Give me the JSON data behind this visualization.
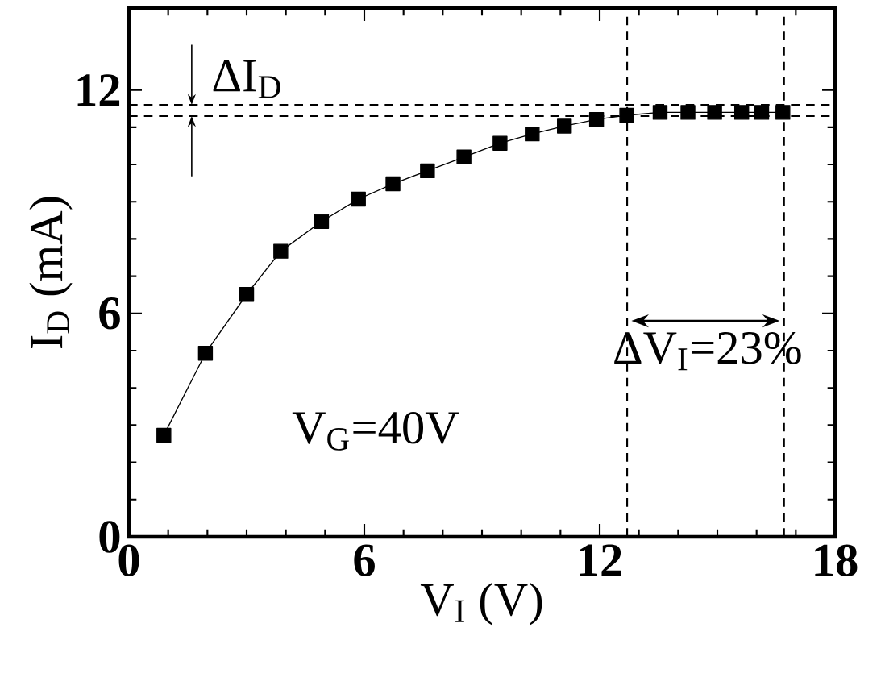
{
  "chart_data": {
    "type": "line",
    "xlabel": "V$_{I}$ (V)",
    "ylabel": "I$_{D}$ (mA)",
    "x": [
      0.89,
      1.95,
      3.0,
      3.87,
      4.91,
      5.85,
      6.73,
      7.61,
      8.54,
      9.46,
      10.28,
      11.1,
      11.92,
      12.69,
      13.54,
      14.25,
      14.93,
      15.62,
      16.13,
      16.67
    ],
    "values": [
      2.73,
      4.93,
      6.51,
      7.67,
      8.47,
      9.07,
      9.48,
      9.83,
      10.2,
      10.57,
      10.82,
      11.03,
      11.21,
      11.32,
      11.4,
      11.4,
      11.4,
      11.4,
      11.4,
      11.4
    ],
    "color": "#000000",
    "marker": "square",
    "line_style": "solid",
    "xlim": [
      0,
      18
    ],
    "ylim": [
      0,
      14.2
    ],
    "xticks": [
      0,
      6,
      12,
      18
    ],
    "yticks": [
      0,
      6,
      12
    ],
    "ref_lines": [
      {
        "axis": "y",
        "value": 11.6,
        "line_style": "dashed",
        "color": "#000000"
      },
      {
        "axis": "y",
        "value": 11.3,
        "line_style": "dashed",
        "color": "#000000"
      },
      {
        "axis": "x",
        "value": 12.7,
        "line_style": "dashed",
        "color": "#000000"
      },
      {
        "axis": "x",
        "value": 16.7,
        "line_style": "dashed",
        "color": "#000000"
      }
    ],
    "annotations": [
      {
        "text": "ΔI$_{D}$",
        "x": 1.6,
        "y": 11.6
      },
      {
        "text": "ΔV$_{I}$=23%",
        "x": 12.7,
        "y": 5.8
      },
      "V$_{G}$=40V"
    ],
    "grid": false
  }
}
